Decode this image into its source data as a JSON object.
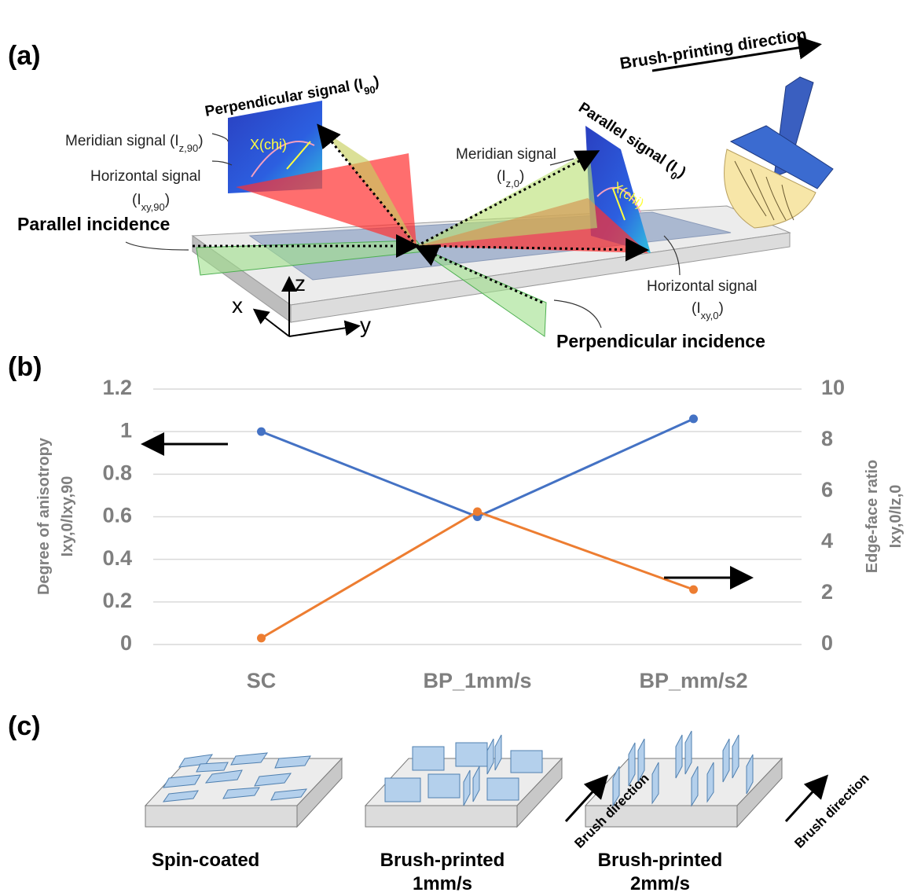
{
  "panels": {
    "a": "(a)",
    "b": "(b)",
    "c": "(c)"
  },
  "diagram_a": {
    "brush_direction": "Brush-printing direction",
    "perpendicular_signal": {
      "pre": "Perpendicular signal (I",
      "sub": "90",
      "post": ")"
    },
    "parallel_signal": {
      "pre": "Parallel signal (I",
      "sub": "0",
      "post": ")"
    },
    "meridian_90": {
      "pre": "Meridian signal (I",
      "sub": "z,90",
      "post": ")"
    },
    "horizontal_90": {
      "line1": "Horizontal signal",
      "pre": "(I",
      "sub": "xy,90",
      "post": ")"
    },
    "meridian_0": {
      "line1": "Meridian signal",
      "pre": "(I",
      "sub": "z,0",
      "post": ")"
    },
    "horizontal_0": {
      "line1": "Horizontal signal",
      "pre": "(I",
      "sub": "xy,0",
      "post": ")"
    },
    "chi_left": "X(chi)",
    "chi_right": "X(chi)",
    "parallel_incidence": "Parallel incidence",
    "perpendicular_incidence": "Perpendicular incidence",
    "axes": {
      "x": "x",
      "y": "y",
      "z": "z"
    }
  },
  "chart_data": {
    "type": "line",
    "categories": [
      "SC",
      "BP_1mm/s",
      "BP_mm/s2"
    ],
    "series": [
      {
        "name": "Degree of anisotropy",
        "color": "#4472c4",
        "values": [
          1.0,
          0.6,
          1.06
        ]
      },
      {
        "name": "Edge-face ratio",
        "color": "#ed7d31",
        "axis": "y2",
        "values": [
          0.25,
          5.2,
          2.15
        ]
      }
    ],
    "ylabel": [
      "Degree of anisotropy",
      "Ixy,0/Ixy,90"
    ],
    "y2label": [
      "Edge-face ratio",
      "Ixy,0/Iz,0"
    ],
    "ylim": [
      0,
      1.2
    ],
    "yticks": [
      0,
      0.2,
      0.4,
      0.6,
      0.8,
      1,
      1.2
    ],
    "y2lim": [
      0,
      10
    ],
    "y2ticks": [
      0,
      2,
      4,
      6,
      8,
      10
    ],
    "grid": true
  },
  "diagram_c": {
    "brush_direction_1": "Brush direction",
    "brush_direction_2": "Brush direction",
    "spin_coated": "Spin-coated",
    "bp1": [
      "Brush-printed",
      "1mm/s"
    ],
    "bp2": [
      "Brush-printed",
      "2mm/s"
    ]
  }
}
